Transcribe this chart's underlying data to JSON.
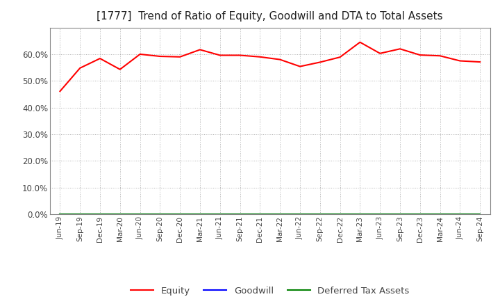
{
  "title": "[1777]  Trend of Ratio of Equity, Goodwill and DTA to Total Assets",
  "x_labels": [
    "Jun-19",
    "Sep-19",
    "Dec-19",
    "Mar-20",
    "Jun-20",
    "Sep-20",
    "Dec-20",
    "Mar-21",
    "Jun-21",
    "Sep-21",
    "Dec-21",
    "Mar-22",
    "Jun-22",
    "Sep-22",
    "Dec-22",
    "Mar-23",
    "Jun-23",
    "Sep-23",
    "Dec-23",
    "Mar-24",
    "Jun-24",
    "Sep-24"
  ],
  "equity": [
    0.461,
    0.548,
    0.584,
    0.543,
    0.6,
    0.592,
    0.59,
    0.617,
    0.596,
    0.596,
    0.59,
    0.58,
    0.554,
    0.57,
    0.589,
    0.645,
    0.603,
    0.62,
    0.597,
    0.594,
    0.575,
    0.571
  ],
  "goodwill": [
    0.0,
    0.0,
    0.0,
    0.0,
    0.0,
    0.0,
    0.0,
    0.0,
    0.0,
    0.0,
    0.0,
    0.0,
    0.0,
    0.0,
    0.0,
    0.0,
    0.0,
    0.0,
    0.0,
    0.0,
    0.0,
    0.0
  ],
  "dta": [
    0.0,
    0.0,
    0.0,
    0.0,
    0.0,
    0.0,
    0.0,
    0.0,
    0.0,
    0.0,
    0.0,
    0.0,
    0.0,
    0.0,
    0.0,
    0.0,
    0.0,
    0.0,
    0.0,
    0.0,
    0.0,
    0.0
  ],
  "equity_color": "#ff0000",
  "goodwill_color": "#0000ff",
  "dta_color": "#008000",
  "ylim": [
    0.0,
    0.7
  ],
  "yticks": [
    0.0,
    0.1,
    0.2,
    0.3,
    0.4,
    0.5,
    0.6
  ],
  "background_color": "#ffffff",
  "plot_bg_color": "#ffffff",
  "grid_color": "#aaaaaa",
  "title_fontsize": 11,
  "legend_labels": [
    "Equity",
    "Goodwill",
    "Deferred Tax Assets"
  ]
}
